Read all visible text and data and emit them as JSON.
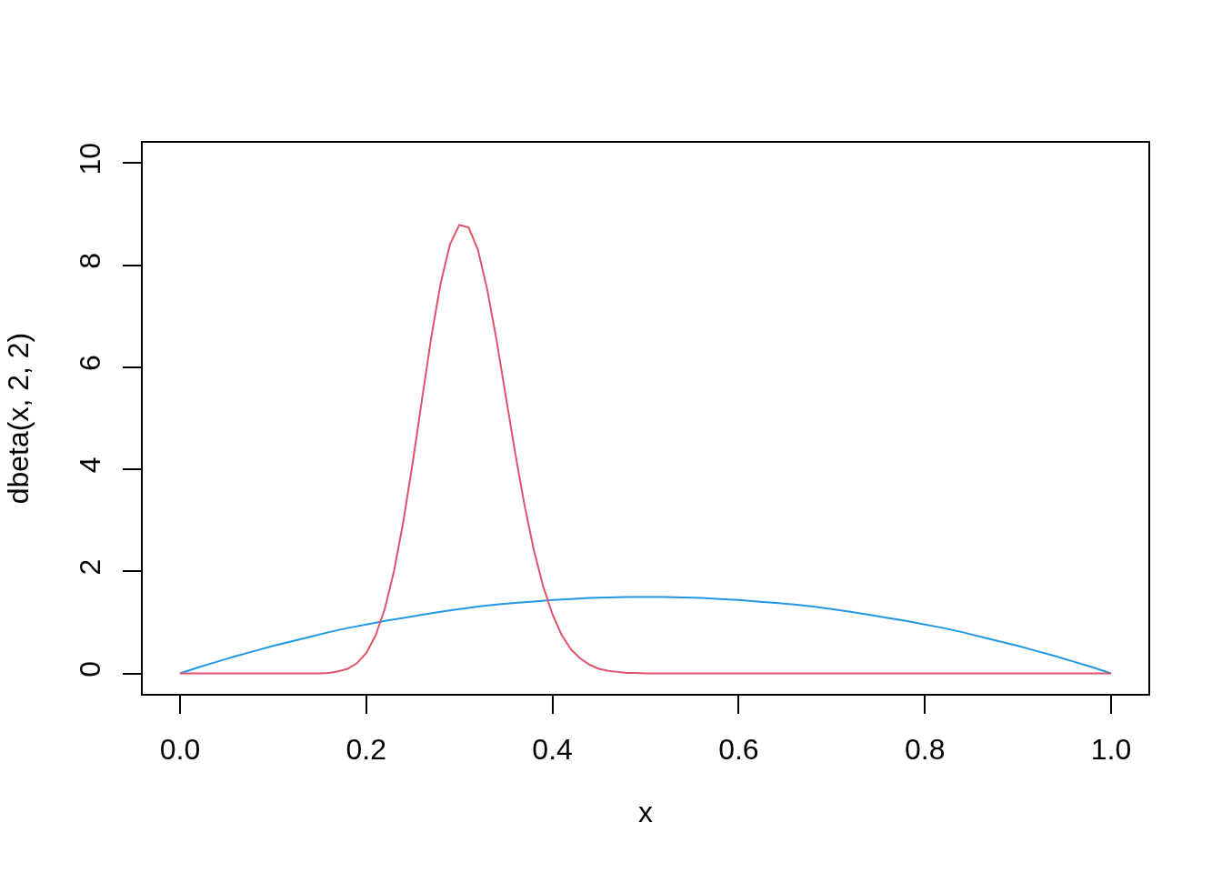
{
  "chart_data": {
    "type": "line",
    "xlabel": "x",
    "ylabel": "dbeta(x, 2, 2)",
    "xlim": [
      -0.04,
      1.04
    ],
    "ylim": [
      -0.4,
      10.4
    ],
    "xticks": [
      {
        "value": 0,
        "label": "0.0"
      },
      0.2,
      0.4,
      0.6,
      0.8,
      {
        "value": 1,
        "label": "1.0"
      }
    ],
    "yticks": [
      0,
      2,
      4,
      6,
      8,
      10
    ],
    "series": [
      {
        "color": "#2297e6",
        "x": [
          0,
          0.02,
          0.04,
          0.06,
          0.08,
          0.1,
          0.12,
          0.14,
          0.16,
          0.18,
          0.2,
          0.22,
          0.24,
          0.26,
          0.28,
          0.3,
          0.32,
          0.34,
          0.36,
          0.38,
          0.4,
          0.42,
          0.44,
          0.46,
          0.48,
          0.5,
          0.52,
          0.54,
          0.56,
          0.58,
          0.6,
          0.62,
          0.64,
          0.66,
          0.68,
          0.7,
          0.72,
          0.74,
          0.76,
          0.78,
          0.8,
          0.82,
          0.84,
          0.86,
          0.88,
          0.9,
          0.92,
          0.94,
          0.96,
          0.98,
          1
        ],
        "values": [
          0,
          0.12,
          0.23,
          0.34,
          0.44,
          0.54,
          0.63,
          0.72,
          0.81,
          0.89,
          0.96,
          1.03,
          1.09,
          1.15,
          1.21,
          1.26,
          1.31,
          1.35,
          1.38,
          1.41,
          1.44,
          1.46,
          1.48,
          1.49,
          1.5,
          1.5,
          1.5,
          1.49,
          1.48,
          1.46,
          1.44,
          1.41,
          1.38,
          1.35,
          1.31,
          1.26,
          1.21,
          1.15,
          1.09,
          1.03,
          0.96,
          0.89,
          0.81,
          0.72,
          0.63,
          0.54,
          0.44,
          0.34,
          0.23,
          0.12,
          0
        ]
      },
      {
        "color": "#df536b",
        "x": [
          0,
          0.05,
          0.1,
          0.14,
          0.15,
          0.16,
          0.17,
          0.18,
          0.19,
          0.2,
          0.21,
          0.22,
          0.23,
          0.24,
          0.25,
          0.26,
          0.27,
          0.28,
          0.29,
          0.3,
          0.31,
          0.32,
          0.33,
          0.34,
          0.35,
          0.36,
          0.37,
          0.38,
          0.39,
          0.4,
          0.41,
          0.42,
          0.43,
          0.44,
          0.45,
          0.46,
          0.47,
          0.48,
          0.49,
          0.5,
          0.55,
          0.6,
          0.7,
          0.8,
          0.9,
          1
        ],
        "values": [
          0,
          0,
          0,
          0,
          0,
          0.01,
          0.04,
          0.09,
          0.2,
          0.4,
          0.74,
          1.27,
          2.02,
          2.99,
          4.14,
          5.38,
          6.6,
          7.65,
          8.41,
          8.79,
          8.74,
          8.3,
          7.52,
          6.53,
          5.42,
          4.32,
          3.3,
          2.42,
          1.71,
          1.16,
          0.75,
          0.47,
          0.29,
          0.17,
          0.09,
          0.05,
          0.03,
          0.01,
          0.01,
          0,
          0,
          0,
          0,
          0,
          0,
          0
        ]
      }
    ]
  }
}
